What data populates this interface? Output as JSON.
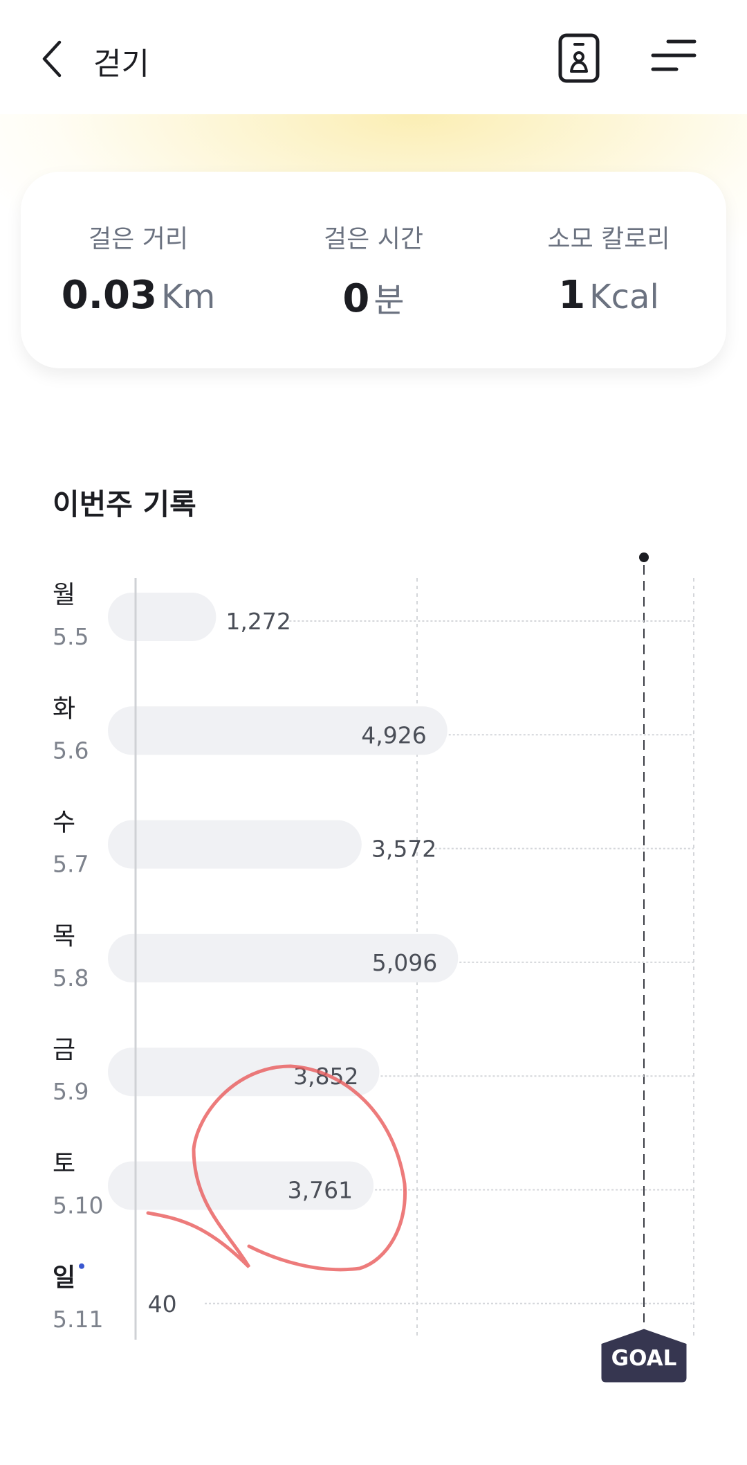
{
  "header": {
    "title": "걷기",
    "back_icon": "chevron-left-icon",
    "icons": [
      "id-card-icon",
      "menu-icon"
    ]
  },
  "summary": [
    {
      "label": "걸은 거리",
      "value": "0.03",
      "unit": "Km"
    },
    {
      "label": "걸은 시간",
      "value": "0",
      "unit": "분"
    },
    {
      "label": "소모 칼로리",
      "value": "1",
      "unit": "Kcal"
    }
  ],
  "weekly": {
    "title": "이번주 기록"
  },
  "chart_data": {
    "type": "bar",
    "orientation": "horizontal",
    "categories": [
      "월",
      "화",
      "수",
      "목",
      "금",
      "토",
      "일"
    ],
    "dates": [
      "5.5",
      "5.6",
      "5.7",
      "5.8",
      "5.9",
      "5.10",
      "5.11"
    ],
    "values": [
      1272,
      4926,
      3572,
      5096,
      3852,
      3761,
      40
    ],
    "value_labels": [
      "1,272",
      "4,926",
      "3,572",
      "5,096",
      "3,852",
      "3,761",
      "40"
    ],
    "highlighted_day": "일",
    "goal_label": "GOAL",
    "grid": true,
    "colors": {
      "bar": "#f0f1f4",
      "today": "#3a57d0",
      "goal_badge": "#363650",
      "annotation": "#e85a5a"
    }
  }
}
